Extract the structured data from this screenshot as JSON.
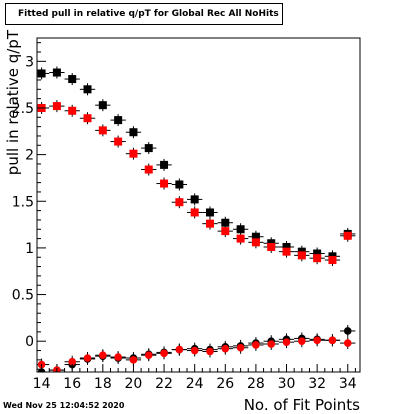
{
  "chart_data": {
    "type": "scatter",
    "title": "Fitted pull in relative q/pT for Global Rec All NoHits",
    "xlabel": "No. of Fit Points",
    "ylabel": "pull in relative q/pT",
    "xlim": [
      13.7,
      34.8
    ],
    "ylim": [
      -0.33,
      3.25
    ],
    "xticks": [
      14,
      16,
      18,
      20,
      22,
      24,
      26,
      28,
      30,
      32,
      34
    ],
    "yticks": [
      0,
      0.5,
      1,
      1.5,
      2,
      2.5,
      3
    ],
    "ytick_labels": [
      "0",
      "0.5",
      "1",
      "1.5",
      "2",
      "2.5",
      "3"
    ],
    "grid": false,
    "timestamp": "Wed Nov 25 12:04:52 2020",
    "series": [
      {
        "marker": "square",
        "color": "#000000",
        "x": [
          14,
          15,
          16,
          17,
          18,
          19,
          20,
          21,
          22,
          23,
          24,
          25,
          26,
          27,
          28,
          29,
          30,
          31,
          32,
          33,
          34
        ],
        "y": [
          2.87,
          2.88,
          2.81,
          2.7,
          2.53,
          2.37,
          2.24,
          2.07,
          1.89,
          1.68,
          1.52,
          1.38,
          1.27,
          1.2,
          1.12,
          1.05,
          1.01,
          0.96,
          0.94,
          0.91,
          1.15
        ]
      },
      {
        "marker": "square",
        "color": "#ff0000",
        "x": [
          14,
          15,
          16,
          17,
          18,
          19,
          20,
          21,
          22,
          23,
          24,
          25,
          26,
          27,
          28,
          29,
          30,
          31,
          32,
          33,
          34
        ],
        "y": [
          2.5,
          2.52,
          2.47,
          2.39,
          2.26,
          2.14,
          2.01,
          1.84,
          1.69,
          1.49,
          1.38,
          1.26,
          1.18,
          1.1,
          1.06,
          1.01,
          0.96,
          0.92,
          0.89,
          0.87,
          1.13
        ]
      },
      {
        "marker": "circle",
        "color": "#000000",
        "x": [
          14,
          15,
          16,
          17,
          18,
          19,
          20,
          21,
          22,
          23,
          24,
          25,
          26,
          27,
          28,
          29,
          30,
          31,
          32,
          33,
          34
        ],
        "y": [
          -0.33,
          -0.31,
          -0.25,
          -0.19,
          -0.16,
          -0.18,
          -0.18,
          -0.14,
          -0.12,
          -0.09,
          -0.08,
          -0.09,
          -0.06,
          -0.05,
          -0.02,
          0.0,
          0.02,
          0.03,
          0.02,
          0.01,
          0.11
        ]
      },
      {
        "marker": "circle",
        "color": "#ff0000",
        "x": [
          14,
          15,
          16,
          17,
          18,
          19,
          20,
          21,
          22,
          23,
          24,
          25,
          26,
          27,
          28,
          29,
          30,
          31,
          32,
          33,
          34
        ],
        "y": [
          -0.25,
          -0.31,
          -0.22,
          -0.18,
          -0.15,
          -0.17,
          -0.2,
          -0.15,
          -0.13,
          -0.09,
          -0.1,
          -0.11,
          -0.08,
          -0.07,
          -0.04,
          -0.03,
          -0.01,
          0.0,
          0.01,
          0.01,
          -0.02
        ]
      }
    ]
  }
}
